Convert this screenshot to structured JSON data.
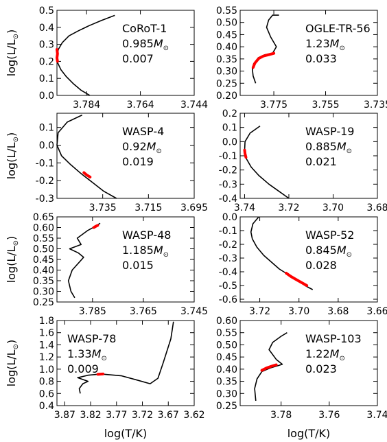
{
  "figure": {
    "ylabel": "log(L/L",
    "ylabel_sub": "⊙",
    "ylabel_close": ")",
    "xlabel": "log(T/K)",
    "track_color": "#000000",
    "highlight_color": "#ff0000"
  },
  "chart_data": [
    {
      "type": "line",
      "name": "CoRoT-1",
      "annotation": [
        "CoRoT-1",
        "0.985",
        "0.007"
      ],
      "mass_unit": "M",
      "xlim": [
        3.795,
        3.744
      ],
      "ylim": [
        0.0,
        0.5
      ],
      "xticks": [
        "3.784",
        "3.764",
        "3.744"
      ],
      "xtick_values": [
        3.784,
        3.764,
        3.744
      ],
      "yticks": [
        "0.0",
        "0.1",
        "0.2",
        "0.3",
        "0.4",
        "0.5"
      ],
      "ytick_values": [
        0.0,
        0.1,
        0.2,
        0.3,
        0.4,
        0.5
      ],
      "track": {
        "x": [
          3.7735,
          3.7785,
          3.783,
          3.787,
          3.7905,
          3.793,
          3.7945,
          3.795,
          3.7947,
          3.7935,
          3.7915,
          3.789,
          3.786,
          3.7828
        ],
        "y": [
          0.47,
          0.44,
          0.41,
          0.38,
          0.35,
          0.31,
          0.27,
          0.23,
          0.19,
          0.15,
          0.11,
          0.07,
          0.03,
          0.0
        ]
      },
      "highlight": {
        "x": [
          3.795,
          3.7948,
          3.795,
          3.7948
        ],
        "y": [
          0.27,
          0.245,
          0.22,
          0.2
        ]
      }
    },
    {
      "type": "line",
      "name": "OGLE-TR-56",
      "annotation": [
        "OGLE-TR-56",
        "1.23",
        "0.033"
      ],
      "mass_unit": "M",
      "xlim": [
        3.788,
        3.735
      ],
      "ylim": [
        0.2,
        0.55
      ],
      "xticks": [
        "3.775",
        "3.755",
        "3.735"
      ],
      "xtick_values": [
        3.775,
        3.755,
        3.735
      ],
      "yticks": [
        "0.20",
        "0.25",
        "0.30",
        "0.35",
        "0.40",
        "0.45",
        "0.50",
        "0.55"
      ],
      "ytick_values": [
        0.2,
        0.25,
        0.3,
        0.35,
        0.4,
        0.45,
        0.5,
        0.55
      ],
      "track": {
        "x": [
          3.782,
          3.783,
          3.7833,
          3.7828,
          3.781,
          3.7785,
          3.7755,
          3.774,
          3.7762,
          3.7778,
          3.777,
          3.7755,
          3.773
        ],
        "y": [
          0.25,
          0.28,
          0.31,
          0.33,
          0.355,
          0.367,
          0.373,
          0.4,
          0.44,
          0.48,
          0.51,
          0.53,
          0.53
        ]
      },
      "highlight": {
        "x": [
          3.783,
          3.7823,
          3.7808,
          3.779,
          3.7768,
          3.775
        ],
        "y": [
          0.315,
          0.333,
          0.352,
          0.362,
          0.368,
          0.373
        ]
      }
    },
    {
      "type": "line",
      "name": "WASP-4",
      "annotation": [
        "WASP-4",
        "0.92",
        "0.019"
      ],
      "mass_unit": "M",
      "xlim": [
        3.755,
        3.695
      ],
      "ylim": [
        -0.3,
        0.18
      ],
      "xticks": [
        "3.735",
        "3.715",
        "3.695"
      ],
      "xtick_values": [
        3.735,
        3.715,
        3.695
      ],
      "yticks": [
        "-0.3",
        "-0.2",
        "-0.1",
        "0.0",
        "0.1"
      ],
      "ytick_values": [
        -0.3,
        -0.2,
        -0.1,
        0.0,
        0.1
      ],
      "track": {
        "x": [
          3.744,
          3.7505,
          3.7545,
          3.755,
          3.753,
          3.749,
          3.7445,
          3.7395,
          3.7345,
          3.729
        ],
        "y": [
          0.17,
          0.13,
          0.07,
          0.0,
          -0.06,
          -0.11,
          -0.16,
          -0.21,
          -0.26,
          -0.3
        ]
      },
      "highlight": {
        "x": [
          3.7432,
          3.742,
          3.7405
        ],
        "y": [
          -0.155,
          -0.168,
          -0.18
        ]
      }
    },
    {
      "type": "line",
      "name": "WASP-19",
      "annotation": [
        "WASP-19",
        "0.885",
        "0.021"
      ],
      "mass_unit": "M",
      "xlim": [
        3.742,
        3.68
      ],
      "ylim": [
        -0.4,
        0.2
      ],
      "xticks": [
        "3.74",
        "3.72",
        "3.70",
        "3.68"
      ],
      "xtick_values": [
        3.74,
        3.72,
        3.7,
        3.68
      ],
      "yticks": [
        "-0.4",
        "-0.3",
        "-0.2",
        "-0.1",
        "0.0",
        "0.1",
        "0.2"
      ],
      "ytick_values": [
        -0.4,
        -0.3,
        -0.2,
        -0.1,
        0.0,
        0.1,
        0.2
      ],
      "track": {
        "x": [
          3.733,
          3.7375,
          3.7398,
          3.74,
          3.7392,
          3.737,
          3.7335,
          3.729,
          3.7245,
          3.72
        ],
        "y": [
          0.11,
          0.06,
          0.0,
          -0.06,
          -0.12,
          -0.18,
          -0.24,
          -0.3,
          -0.35,
          -0.4
        ]
      },
      "highlight": {
        "x": [
          3.74,
          3.7398,
          3.7394
        ],
        "y": [
          -0.06,
          -0.085,
          -0.11
        ]
      }
    },
    {
      "type": "line",
      "name": "WASP-48",
      "annotation": [
        "WASP-48",
        "1.185",
        "0.015"
      ],
      "mass_unit": "M",
      "xlim": [
        3.799,
        3.745
      ],
      "ylim": [
        0.25,
        0.65
      ],
      "xticks": [
        "3.785",
        "3.765",
        "3.745"
      ],
      "xtick_values": [
        3.785,
        3.765,
        3.745
      ],
      "yticks": [
        "0.25",
        "0.30",
        "0.35",
        "0.40",
        "0.45",
        "0.50",
        "0.55",
        "0.60",
        "0.65"
      ],
      "ytick_values": [
        0.25,
        0.3,
        0.35,
        0.4,
        0.45,
        0.5,
        0.55,
        0.6,
        0.65
      ],
      "track": {
        "x": [
          3.792,
          3.7935,
          3.7945,
          3.793,
          3.7885,
          3.7905,
          3.794,
          3.7895,
          3.791,
          3.787,
          3.784,
          3.782
        ],
        "y": [
          0.27,
          0.3,
          0.35,
          0.4,
          0.46,
          0.48,
          0.5,
          0.52,
          0.55,
          0.585,
          0.605,
          0.62
        ]
      },
      "highlight": {
        "x": [
          3.7845,
          3.7838,
          3.783
        ],
        "y": [
          0.6,
          0.605,
          0.61
        ]
      }
    },
    {
      "type": "line",
      "name": "WASP-52",
      "annotation": [
        "WASP-52",
        "0.845",
        "0.028"
      ],
      "mass_unit": "M",
      "xlim": [
        3.73,
        3.66
      ],
      "ylim": [
        -0.62,
        0.0
      ],
      "xticks": [
        "3.72",
        "3.70",
        "3.68",
        "3.66"
      ],
      "xtick_values": [
        3.72,
        3.7,
        3.68,
        3.66
      ],
      "yticks": [
        "-0.6",
        "-0.5",
        "-0.4",
        "-0.3",
        "-0.2",
        "-0.1",
        "0.0"
      ],
      "ytick_values": [
        -0.6,
        -0.5,
        -0.4,
        -0.3,
        -0.2,
        -0.1,
        0.0
      ],
      "track": {
        "x": [
          3.7205,
          3.7235,
          3.7245,
          3.7238,
          3.7215,
          3.718,
          3.714,
          3.71,
          3.7055,
          3.701,
          3.697,
          3.693
        ],
        "y": [
          0.0,
          -0.05,
          -0.11,
          -0.16,
          -0.22,
          -0.28,
          -0.33,
          -0.38,
          -0.42,
          -0.46,
          -0.5,
          -0.53
        ]
      },
      "highlight": {
        "x": [
          3.7065,
          3.704,
          3.701,
          3.6985,
          3.696
        ],
        "y": [
          -0.41,
          -0.435,
          -0.46,
          -0.48,
          -0.5
        ]
      }
    },
    {
      "type": "line",
      "name": "WASP-78",
      "annotation": [
        "WASP-78",
        "1.33",
        "0.009"
      ],
      "mass_unit": "M",
      "xlim": [
        3.885,
        3.62
      ],
      "ylim": [
        0.4,
        1.8
      ],
      "xticks": [
        "3.87",
        "3.82",
        "3.77",
        "3.72",
        "3.67",
        "3.62"
      ],
      "xtick_values": [
        3.87,
        3.82,
        3.77,
        3.72,
        3.67,
        3.62
      ],
      "yticks": [
        "0.4",
        "0.6",
        "0.8",
        "1.0",
        "1.2",
        "1.4",
        "1.6",
        "1.8"
      ],
      "ytick_values": [
        0.4,
        0.6,
        0.8,
        1.0,
        1.2,
        1.4,
        1.6,
        1.8
      ],
      "track": {
        "x": [
          3.84,
          3.842,
          3.835,
          3.825,
          3.845,
          3.825,
          3.8,
          3.76,
          3.73,
          3.705,
          3.69,
          3.68,
          3.665,
          3.66
        ],
        "y": [
          0.6,
          0.68,
          0.76,
          0.8,
          0.86,
          0.9,
          0.92,
          0.89,
          0.82,
          0.76,
          0.85,
          1.1,
          1.5,
          1.78
        ]
      },
      "highlight": {
        "x": [
          3.806,
          3.801,
          3.796
        ],
        "y": [
          0.915,
          0.918,
          0.92
        ]
      }
    },
    {
      "type": "line",
      "name": "WASP-103",
      "annotation": [
        "WASP-103",
        "1.22",
        "0.023"
      ],
      "mass_unit": "M",
      "xlim": [
        3.797,
        3.74
      ],
      "ylim": [
        0.25,
        0.6
      ],
      "xticks": [
        "3.78",
        "3.76",
        "3.74"
      ],
      "xtick_values": [
        3.78,
        3.76,
        3.74
      ],
      "yticks": [
        "0.25",
        "0.30",
        "0.35",
        "0.40",
        "0.45",
        "0.50",
        "0.55",
        "0.60"
      ],
      "ytick_values": [
        0.25,
        0.3,
        0.35,
        0.4,
        0.45,
        0.5,
        0.55,
        0.6
      ],
      "track": {
        "x": [
          3.7905,
          3.791,
          3.79,
          3.788,
          3.7845,
          3.781,
          3.7795,
          3.782,
          3.785,
          3.7835,
          3.78,
          3.7775
        ],
        "y": [
          0.27,
          0.32,
          0.36,
          0.39,
          0.405,
          0.415,
          0.42,
          0.44,
          0.48,
          0.51,
          0.535,
          0.55
        ]
      },
      "highlight": {
        "x": [
          3.788,
          3.786,
          3.784,
          3.782
        ],
        "y": [
          0.395,
          0.405,
          0.412,
          0.418
        ]
      }
    }
  ]
}
